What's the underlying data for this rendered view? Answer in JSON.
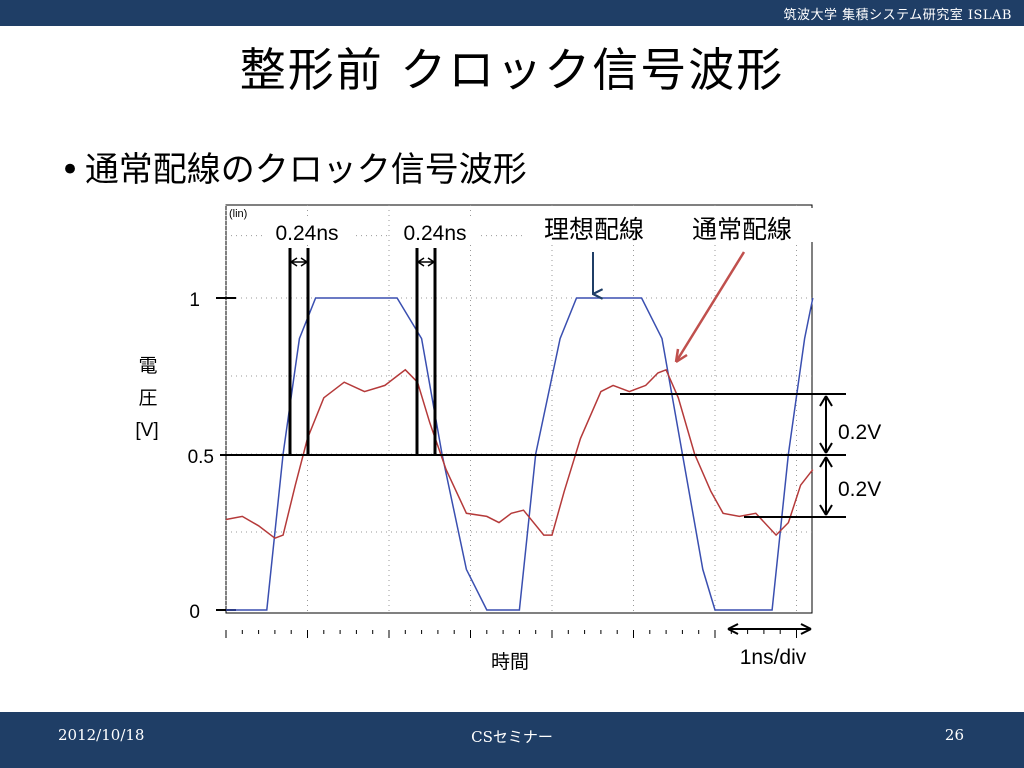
{
  "header": {
    "org_text": "筑波大学  集積システム研究室   ISLAB"
  },
  "slide": {
    "title": "整形前 クロック信号波形",
    "bullet": "通常配線のクロック信号波形"
  },
  "footer": {
    "date": "2012/10/18",
    "center": "CSセミナー",
    "page": "26"
  },
  "chart_data": {
    "type": "line",
    "corner_label": "(lin)",
    "ylabel": [
      "電",
      "圧",
      "[V]"
    ],
    "xlabel": "時間",
    "yticks": [
      "1",
      "0.5",
      "0"
    ],
    "ylim": [
      0,
      1.25
    ],
    "x_unit_label": "1ns/div",
    "xlim_ns": [
      0,
      7.2
    ],
    "series": [
      {
        "name": "理想配線",
        "color": "#3a4fb0",
        "points": [
          [
            0,
            0
          ],
          [
            0.5,
            0
          ],
          [
            0.7,
            0.5
          ],
          [
            0.9,
            0.87
          ],
          [
            1.1,
            1
          ],
          [
            2.1,
            1
          ],
          [
            2.4,
            0.87
          ],
          [
            2.65,
            0.5
          ],
          [
            2.95,
            0.13
          ],
          [
            3.2,
            0
          ],
          [
            3.6,
            0
          ],
          [
            3.8,
            0.5
          ],
          [
            4.1,
            0.87
          ],
          [
            4.3,
            1
          ],
          [
            5.1,
            1
          ],
          [
            5.35,
            0.87
          ],
          [
            5.6,
            0.5
          ],
          [
            5.85,
            0.13
          ],
          [
            6.0,
            0
          ],
          [
            6.7,
            0
          ],
          [
            6.9,
            0.5
          ],
          [
            7.1,
            0.87
          ],
          [
            7.2,
            1
          ]
        ]
      },
      {
        "name": "通常配線",
        "color": "#b53a3a",
        "points": [
          [
            0,
            0.29
          ],
          [
            0.2,
            0.3
          ],
          [
            0.4,
            0.27
          ],
          [
            0.6,
            0.23
          ],
          [
            0.7,
            0.24
          ],
          [
            0.85,
            0.4
          ],
          [
            1.0,
            0.55
          ],
          [
            1.2,
            0.68
          ],
          [
            1.45,
            0.73
          ],
          [
            1.7,
            0.7
          ],
          [
            1.95,
            0.72
          ],
          [
            2.1,
            0.75
          ],
          [
            2.2,
            0.77
          ],
          [
            2.35,
            0.73
          ],
          [
            2.5,
            0.6
          ],
          [
            2.7,
            0.45
          ],
          [
            2.95,
            0.31
          ],
          [
            3.2,
            0.3
          ],
          [
            3.35,
            0.28
          ],
          [
            3.5,
            0.31
          ],
          [
            3.65,
            0.32
          ],
          [
            3.9,
            0.24
          ],
          [
            4.0,
            0.24
          ],
          [
            4.15,
            0.38
          ],
          [
            4.35,
            0.55
          ],
          [
            4.6,
            0.7
          ],
          [
            4.75,
            0.72
          ],
          [
            4.95,
            0.7
          ],
          [
            5.15,
            0.72
          ],
          [
            5.3,
            0.76
          ],
          [
            5.4,
            0.77
          ],
          [
            5.55,
            0.68
          ],
          [
            5.75,
            0.5
          ],
          [
            5.95,
            0.38
          ],
          [
            6.1,
            0.31
          ],
          [
            6.3,
            0.3
          ],
          [
            6.5,
            0.31
          ],
          [
            6.75,
            0.24
          ],
          [
            6.9,
            0.28
          ],
          [
            7.05,
            0.4
          ],
          [
            7.2,
            0.45
          ]
        ]
      }
    ],
    "annotations": {
      "skew1": "0.24ns",
      "skew2": "0.24ns",
      "volt_upper": "0.2V",
      "volt_lower": "0.2V",
      "label_ideal": "理想配線",
      "label_normal": "通常配線"
    }
  }
}
